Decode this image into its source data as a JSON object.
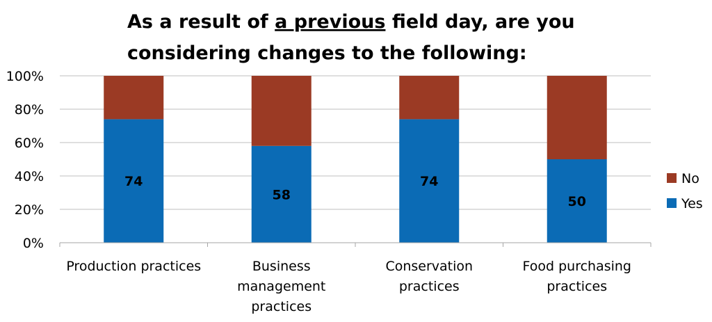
{
  "chart_data": {
    "type": "bar",
    "stacked": true,
    "title_parts": [
      "As a result of ",
      "a previous",
      " field day, are you",
      "considering changes to the following:"
    ],
    "categories": [
      [
        "Production practices"
      ],
      [
        "Business",
        "management",
        "practices"
      ],
      [
        "Conservation",
        "practices"
      ],
      [
        "Food purchasing",
        "practices"
      ]
    ],
    "series": [
      {
        "name": "Yes",
        "color": "#0B6BB5",
        "values": [
          74,
          58,
          74,
          50
        ],
        "show_labels": true
      },
      {
        "name": "No",
        "color": "#9B3A24",
        "values": [
          26,
          42,
          26,
          50
        ],
        "show_labels": false
      }
    ],
    "ylim": [
      0,
      100
    ],
    "yticks": [
      "0%",
      "20%",
      "40%",
      "60%",
      "80%",
      "100%"
    ],
    "grid": true,
    "legend": {
      "position": "right",
      "items": [
        "No",
        "Yes"
      ]
    }
  }
}
